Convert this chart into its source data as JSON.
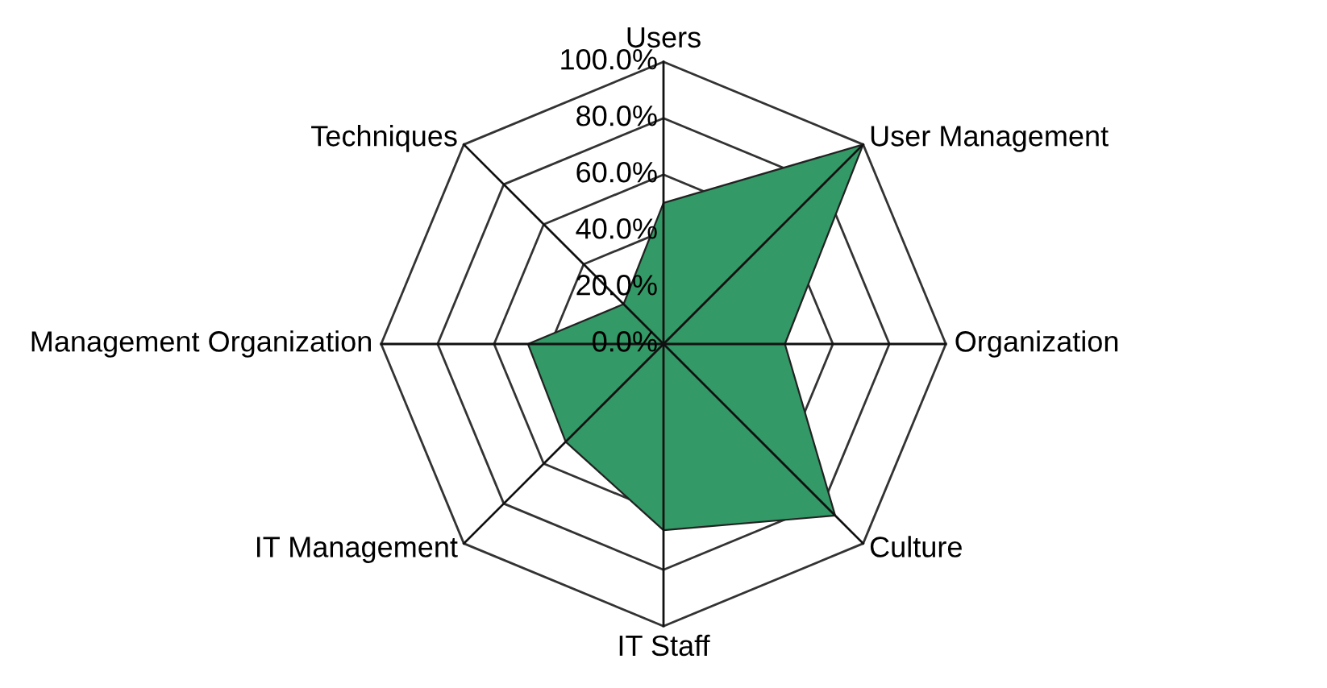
{
  "chart_data": {
    "type": "radar",
    "categories": [
      "Users",
      "User Management",
      "Organization",
      "Culture",
      "IT Staff",
      "IT Management",
      "Management Organization",
      "Techniques"
    ],
    "series": [
      {
        "color": "#339966",
        "values": [
          50,
          100,
          43,
          86,
          66,
          49,
          48,
          20
        ]
      }
    ],
    "ylim": [
      0,
      100
    ],
    "yticks": [
      {
        "value": 0,
        "label": "0.0%"
      },
      {
        "value": 20,
        "label": "20.0%"
      },
      {
        "value": 40,
        "label": "40.0%"
      },
      {
        "value": 60,
        "label": "60.0%"
      },
      {
        "value": 80,
        "label": "80.0%"
      },
      {
        "value": 100,
        "label": "100.0%"
      }
    ],
    "grid": true
  }
}
